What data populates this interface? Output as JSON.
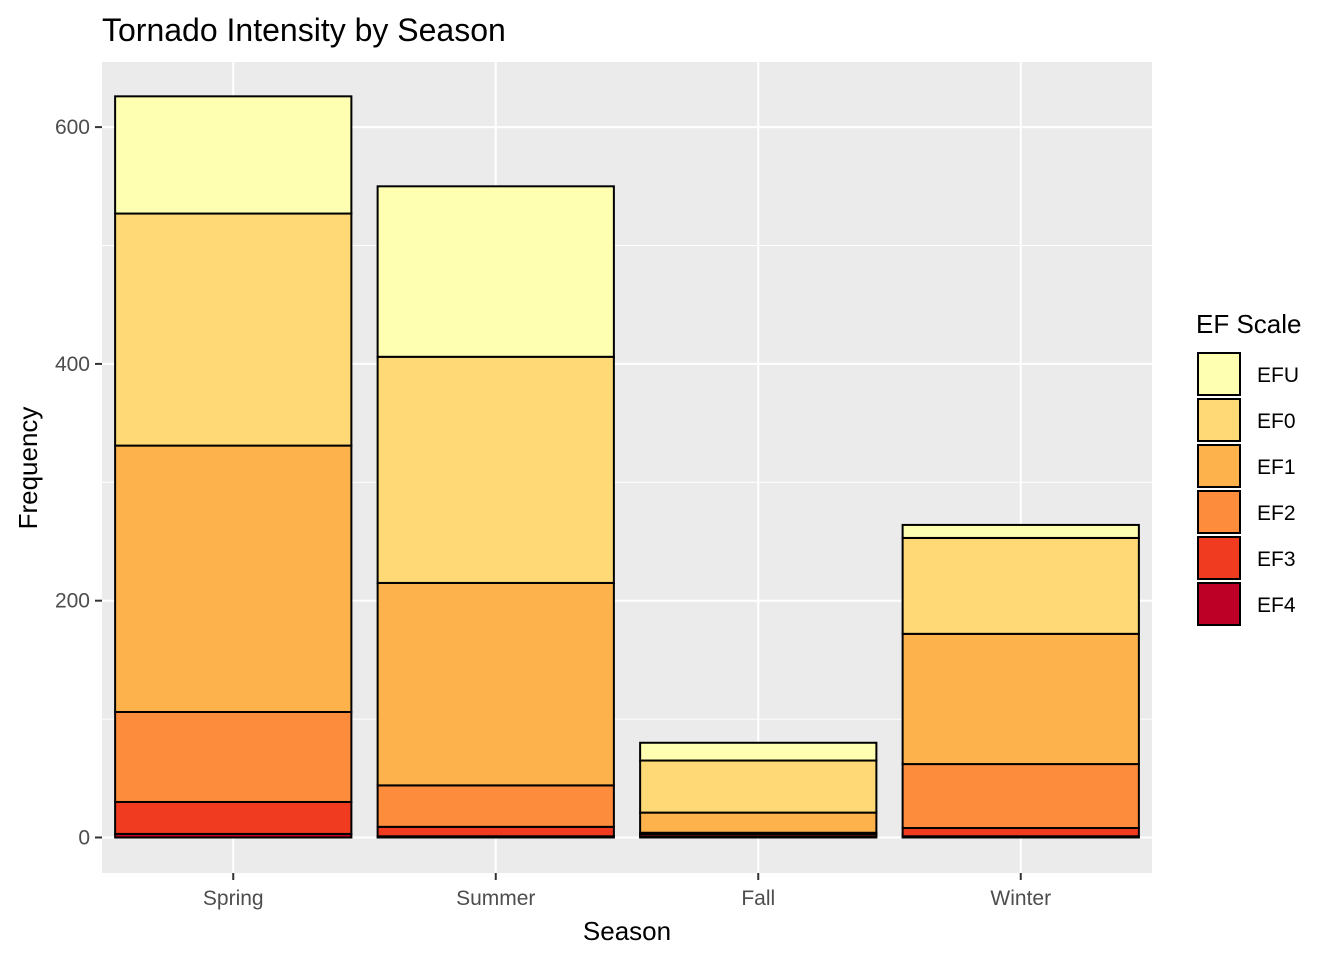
{
  "chart_data": {
    "type": "bar",
    "stacked": true,
    "title": "Tornado Intensity by Season",
    "xlabel": "Season",
    "ylabel": "Frequency",
    "categories": [
      "Spring",
      "Summer",
      "Fall",
      "Winter"
    ],
    "ylim": [
      -30,
      655
    ],
    "yticks": [
      0,
      200,
      400,
      600
    ],
    "grid": true,
    "legend": {
      "title": "EF Scale",
      "position": "right"
    },
    "series": [
      {
        "name": "EF4",
        "color": "#bd0026",
        "values": [
          3,
          1,
          1,
          1
        ]
      },
      {
        "name": "EF3",
        "color": "#f03b20",
        "values": [
          27,
          8,
          2,
          7
        ]
      },
      {
        "name": "EF2",
        "color": "#fd8d3c",
        "values": [
          76,
          35,
          1,
          54
        ]
      },
      {
        "name": "EF1",
        "color": "#feb24c",
        "values": [
          225,
          171,
          17,
          110
        ]
      },
      {
        "name": "EF0",
        "color": "#fed976",
        "values": [
          196,
          191,
          44,
          81
        ]
      },
      {
        "name": "EFU",
        "color": "#ffffb2",
        "values": [
          99,
          144,
          15,
          11
        ]
      }
    ]
  }
}
